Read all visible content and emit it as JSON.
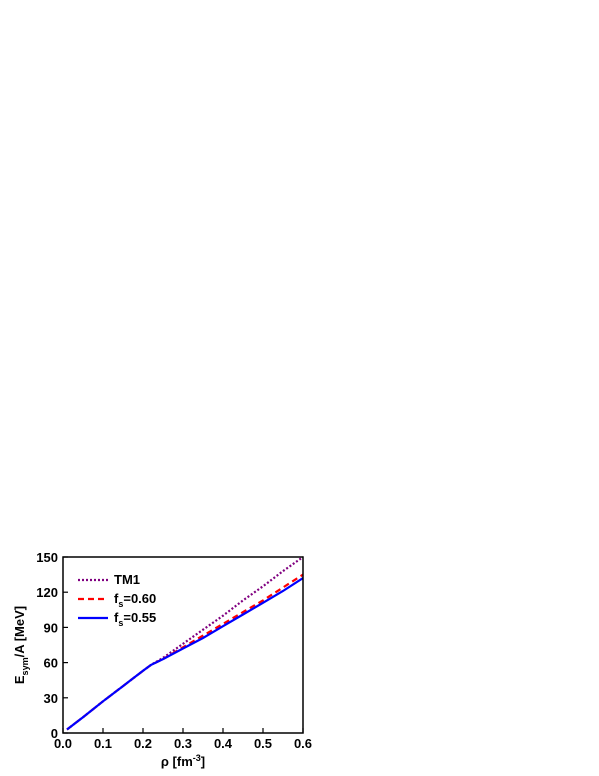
{
  "chart_data": {
    "type": "line",
    "xlabel": [
      "ρ [fm",
      "-3",
      "]"
    ],
    "ylabel": [
      "E",
      "sym",
      "/A [MeV]"
    ],
    "x": [
      0.01,
      0.05,
      0.1,
      0.15,
      0.2,
      0.22,
      0.25,
      0.3,
      0.35,
      0.4,
      0.45,
      0.5,
      0.55,
      0.6
    ],
    "series": [
      {
        "name": [
          "TM1"
        ],
        "color": "#800080",
        "dash": "2,2",
        "values": [
          3,
          13.5,
          27,
          40,
          53,
          58,
          64,
          76,
          88,
          100,
          113,
          125,
          138,
          150
        ]
      },
      {
        "name": [
          "f",
          "s",
          "=0.60"
        ],
        "color": "#ff0000",
        "dash": "6,4",
        "values": [
          3,
          13.5,
          27,
          40,
          53,
          58,
          63,
          73,
          83,
          93,
          103,
          113,
          124,
          135
        ]
      },
      {
        "name": [
          "f",
          "s",
          "=0.55"
        ],
        "color": "#0000ff",
        "dash": "none",
        "values": [
          3,
          13.5,
          27,
          40,
          53,
          58,
          63,
          72,
          81,
          91,
          101,
          111,
          121,
          132
        ]
      }
    ],
    "xlim": [
      0,
      0.6
    ],
    "ylim": [
      0,
      150
    ],
    "xticks": [
      {
        "value": 0,
        "label": "0.0"
      },
      0.1,
      0.2,
      0.3,
      0.4,
      0.5,
      0.6
    ],
    "yticks": [
      0,
      30,
      60,
      90,
      120,
      150
    ],
    "legend": "upper-left"
  }
}
